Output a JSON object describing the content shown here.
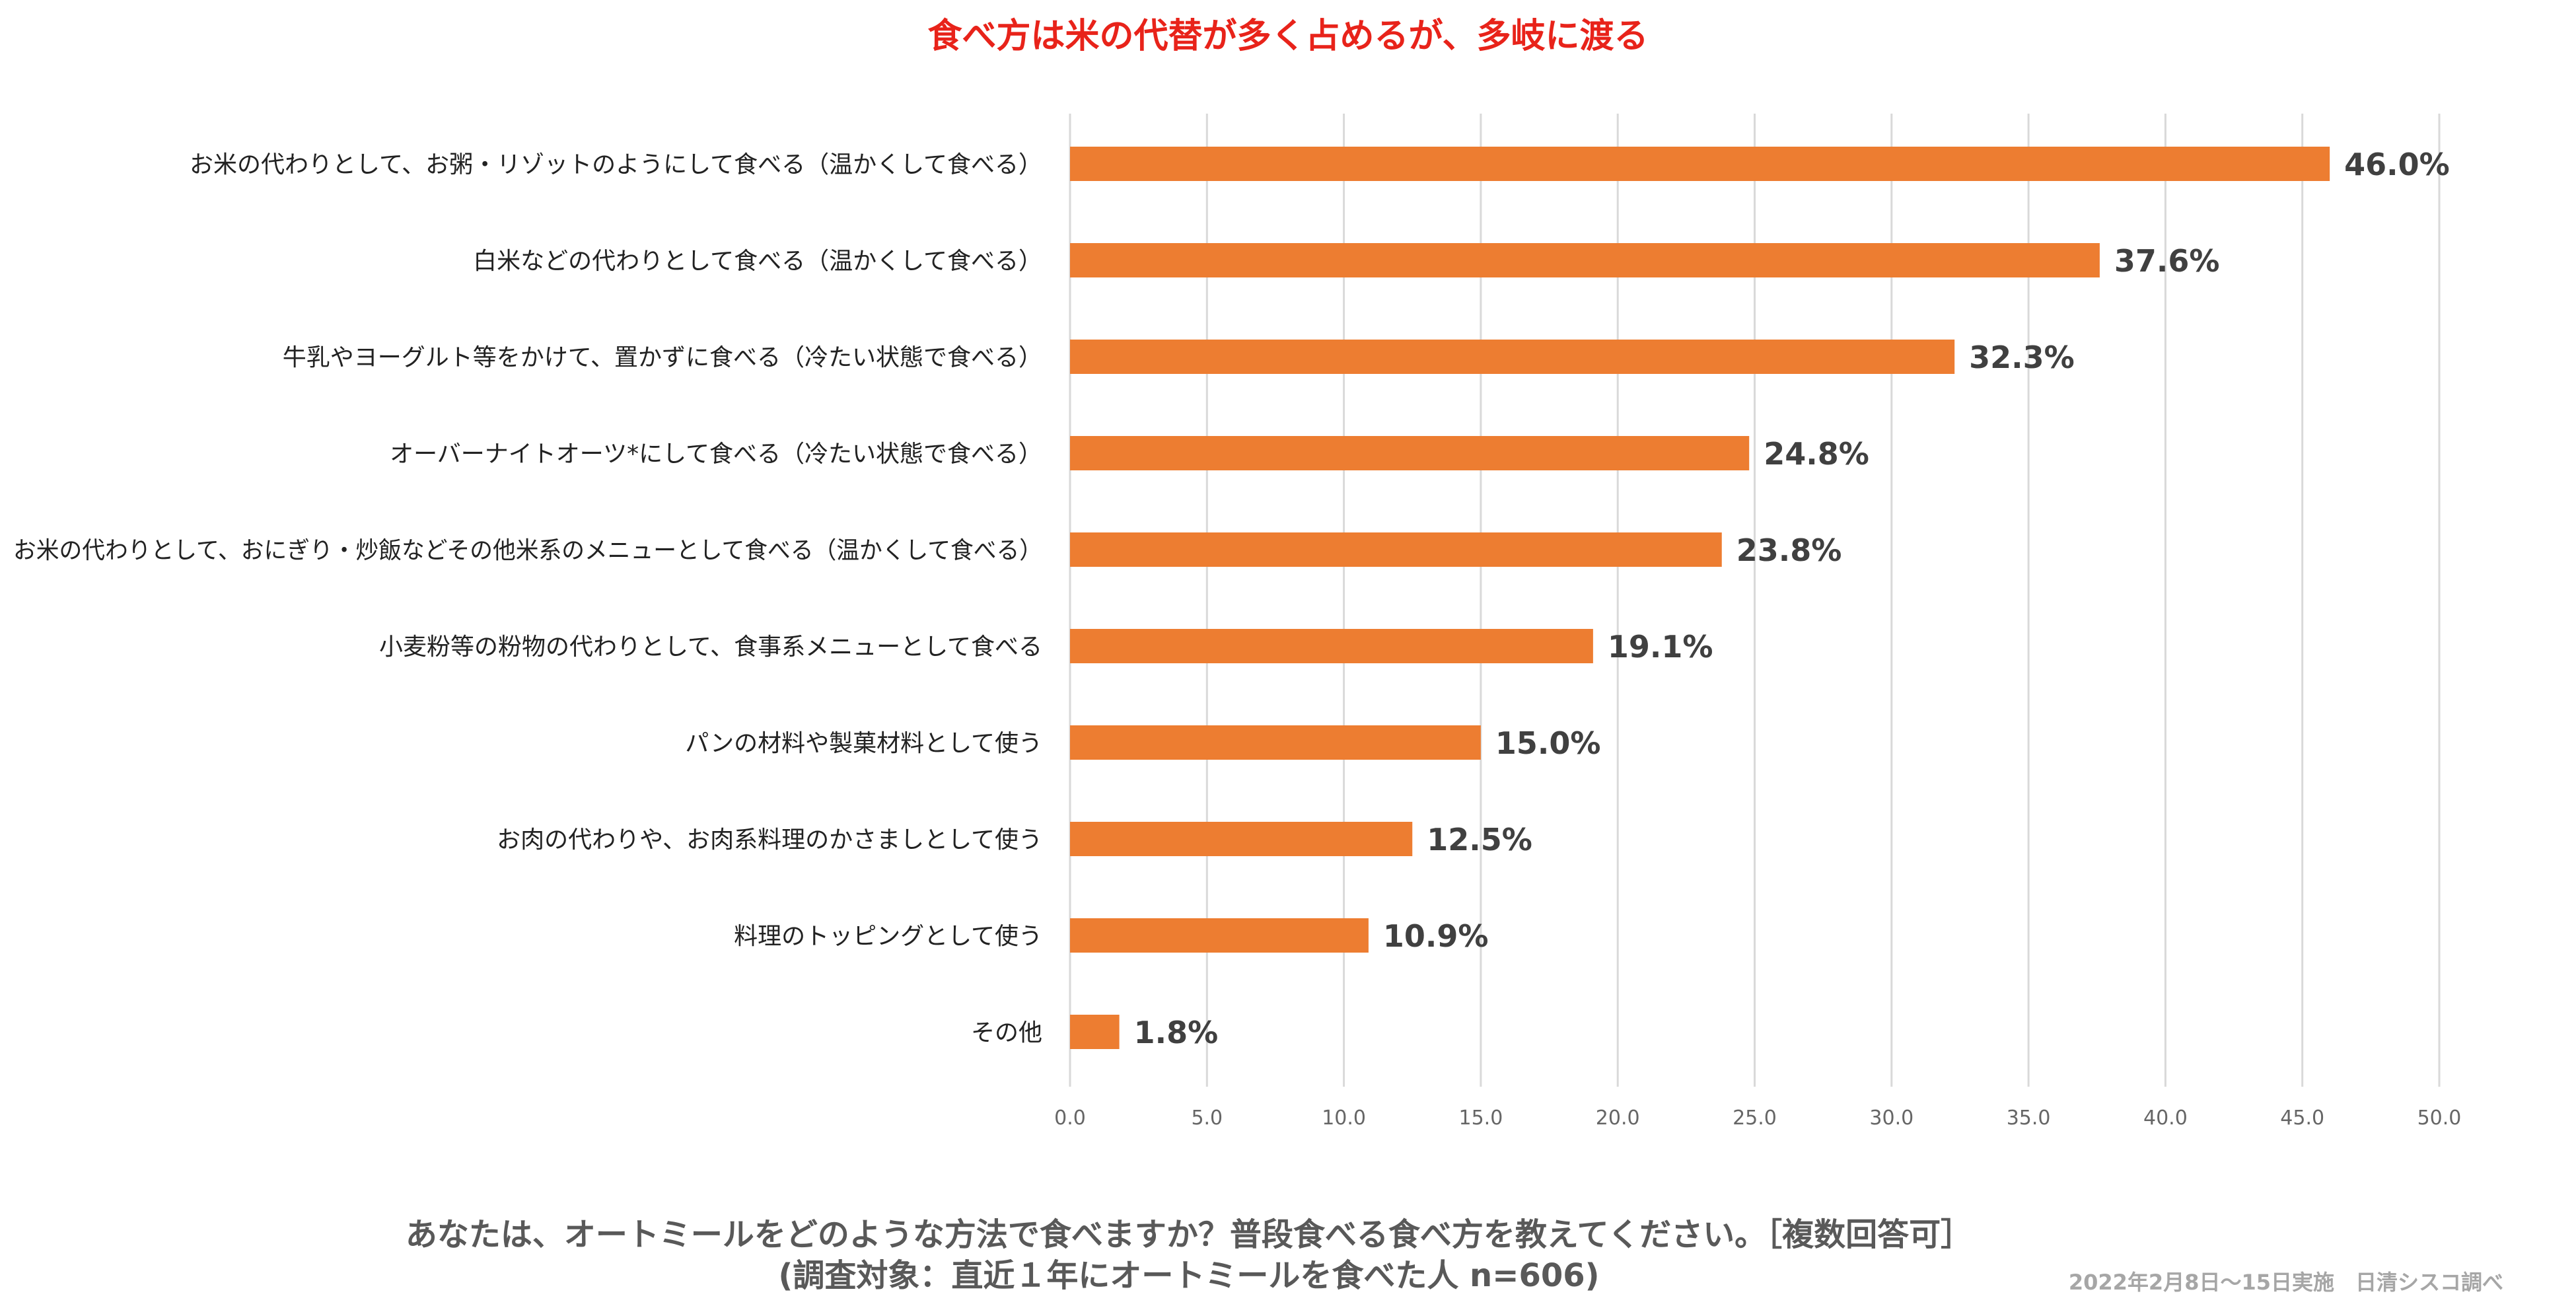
{
  "chart_data": {
    "type": "bar",
    "orientation": "horizontal",
    "title": "食べ方は米の代替が多く占めるが、多岐に渡る",
    "categories": [
      "お米の代わりとして、お粥・リゾットのようにして食べる（温かくして食べる）",
      "白米などの代わりとして食べる（温かくして食べる）",
      "牛乳やヨーグルト等をかけて、置かずに食べる（冷たい状態で食べる）",
      "オーバーナイトオーツ*にして食べる（冷たい状態で食べる）",
      "お米の代わりとして、おにぎり・炒飯などその他米系のメニューとして食べる（温かくして食べる）",
      "小麦粉等の粉物の代わりとして、食事系メニューとして食べる",
      "パンの材料や製菓材料として使う",
      "お肉の代わりや、お肉系料理のかさましとして使う",
      "料理のトッピングとして使う",
      "その他"
    ],
    "values": [
      46.0,
      37.6,
      32.3,
      24.8,
      23.8,
      19.1,
      15.0,
      12.5,
      10.9,
      1.8
    ],
    "value_labels": [
      "46.0%",
      "37.6%",
      "32.3%",
      "24.8%",
      "23.8%",
      "19.1%",
      "15.0%",
      "12.5%",
      "10.9%",
      "1.8%"
    ],
    "xlim": [
      0,
      50
    ],
    "xticks": [
      "0.0",
      "5.0",
      "10.0",
      "15.0",
      "20.0",
      "25.0",
      "30.0",
      "35.0",
      "40.0",
      "45.0",
      "50.0"
    ],
    "grid": true,
    "xlabel": "",
    "ylabel": ""
  },
  "question_line1": "あなたは、オートミールをどのような方法で食べますか？普段食べる食べ方を教えてください。［複数回答可］",
  "question_line2": "(調査対象：直近１年にオートミールを食べた人 n=606)",
  "source_note": "2022年2月8日～15日実施　日清シスコ調べ",
  "colors": {
    "bar": "#ed7d31",
    "title": "#e8231a",
    "grid": "#d9d9d9"
  }
}
